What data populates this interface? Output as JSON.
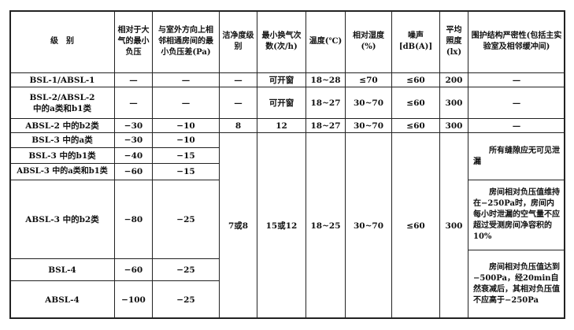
{
  "headers": [
    "级　别",
    "相对于大气的最小负压",
    "与室外方向上相邻相通房间的最小负压差(Pa)",
    "洁净度级别",
    "最小换气次数(次/h)",
    "温度(℃)",
    "相对湿度(%)",
    "噪声[dB(A)]",
    "平均照度(lx)",
    "围护结构严密性(包括主实验室及相邻缓冲间)"
  ],
  "rows": [
    {
      "level": "BSL-1/ABSL-1",
      "min_neg": "—",
      "diff": "—",
      "clean": "—",
      "air": "可开窗",
      "temp": "18~28",
      "rh": "≤70",
      "noise": "≤60",
      "lux": "200",
      "tight": "—"
    },
    {
      "level": "BSL-2/ABSL-2 中的a类和b1类",
      "min_neg": "—",
      "diff": "—",
      "clean": "—",
      "air": "可开窗",
      "temp": "18~27",
      "rh": "30~70",
      "noise": "≤60",
      "lux": "300",
      "tight": "—"
    },
    {
      "level": "ABSL-2 中的b2类",
      "min_neg": "−30",
      "diff": "−10",
      "clean": "8",
      "air": "12",
      "temp": "18~27",
      "rh": "30~70",
      "noise": "≤60",
      "lux": "300",
      "tight": "—"
    },
    {
      "level": "BSL-3 中的a类",
      "min_neg": "−30",
      "diff": "−10"
    },
    {
      "level": "BSL-3 中的b1类",
      "min_neg": "−40",
      "diff": "−15"
    },
    {
      "level": "ABSL-3 中的a类和b1类",
      "min_neg": "−60",
      "diff": "−15"
    },
    {
      "level": "ABSL-3 中的b2类",
      "min_neg": "−80",
      "diff": "−25"
    },
    {
      "level": "BSL-4",
      "min_neg": "−60",
      "diff": "−25"
    },
    {
      "level": "ABSL-4",
      "min_neg": "−100",
      "diff": "−25"
    }
  ],
  "merged": {
    "clean": "7或8",
    "air": "15或12",
    "temp": "18~25",
    "rh": "30~70",
    "noise": "≤60",
    "lux": "300"
  },
  "tightness": [
    "所有缝隙应无可见泄漏",
    "房间相对负压值维持在−250Pa时，房间内每小时泄漏的空气量不应超过受测房间净容积的10%",
    "房间相对负压值达到−500Pa，经20min自然衰减后，其相对负压值不应高于−250Pa"
  ]
}
